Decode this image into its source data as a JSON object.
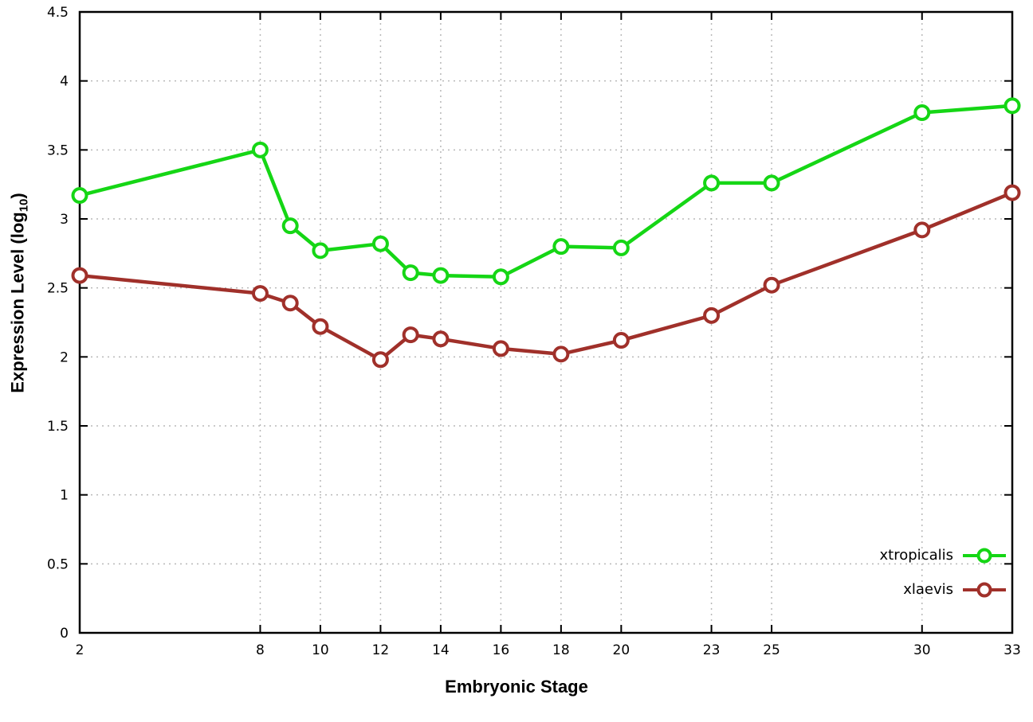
{
  "chart_data": {
    "type": "line",
    "title": "",
    "xlabel": "Embryonic Stage",
    "ylabel_prefix": "Expression Level (log",
    "ylabel_sub": "10",
    "ylabel_suffix": ")",
    "xlim": [
      2,
      33
    ],
    "ylim": [
      0,
      4.5
    ],
    "x_ticks": [
      2,
      8,
      10,
      12,
      14,
      16,
      18,
      20,
      23,
      25,
      30,
      33
    ],
    "y_ticks": [
      0,
      0.5,
      1,
      1.5,
      2,
      2.5,
      3,
      3.5,
      4,
      4.5
    ],
    "y_tick_labels": [
      "0",
      "0.5",
      "1",
      "1.5",
      "2",
      "2.5",
      "3",
      "3.5",
      "4",
      "4.5"
    ],
    "grid": true,
    "legend_position": "bottom-right",
    "x": [
      2,
      8,
      9,
      10,
      12,
      13,
      14,
      16,
      18,
      20,
      23,
      25,
      30,
      33
    ],
    "series": [
      {
        "name": "xtropicalis",
        "color": "#15d615",
        "values": [
          3.17,
          3.5,
          2.95,
          2.77,
          2.82,
          2.61,
          2.59,
          2.58,
          2.8,
          2.79,
          3.26,
          3.26,
          3.77,
          3.82
        ]
      },
      {
        "name": "xlaevis",
        "color": "#a0302a",
        "values": [
          2.59,
          2.46,
          2.39,
          2.22,
          1.98,
          2.16,
          2.13,
          2.06,
          2.02,
          2.12,
          2.3,
          2.52,
          2.92,
          3.19
        ]
      }
    ]
  }
}
